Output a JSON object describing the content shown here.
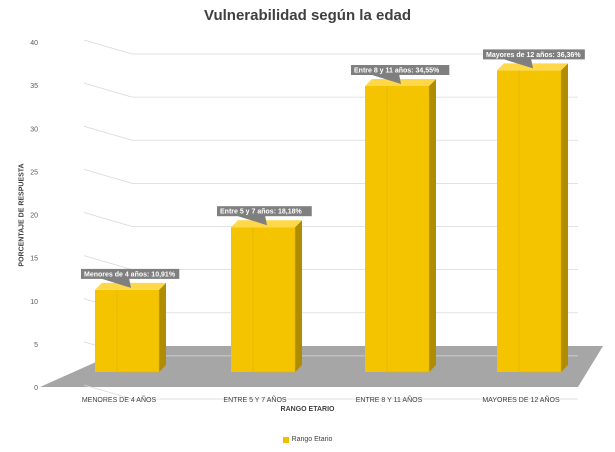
{
  "chart_data": {
    "type": "bar",
    "title": "Vulnerabilidad según la edad",
    "xlabel": "RANGO ETARIO",
    "ylabel": "PORCENTAJE DE RESPUESTA",
    "categories": [
      "MENORES DE 4 AÑOS",
      "ENTRE 5 Y 7 AÑOS",
      "ENTRE 8 Y 11 AÑOS",
      "MAYORES DE 12 AÑOS"
    ],
    "series": [
      {
        "name": "Rango Etario",
        "values": [
          10.91,
          18.18,
          34.55,
          36.36
        ],
        "data_labels": [
          "Menores de 4 años:  10,91%",
          "Entre 5 y 7 años:  18,18%",
          "Entre 8 y 11 años:  34,55%",
          "Mayores de 12 años:  36,36%"
        ]
      }
    ],
    "ylim": [
      0,
      40
    ],
    "yticks": [
      0,
      5,
      10,
      15,
      20,
      25,
      30,
      35,
      40
    ],
    "grid": true,
    "legend": "bottom",
    "colors": {
      "bar_front": "#f5c400",
      "bar_side": "#b08c00",
      "bar_top": "#ffd84a",
      "floor": "#a6a6a6",
      "label_box": "#7f7f7f",
      "grid": "#d9d9d9"
    }
  }
}
